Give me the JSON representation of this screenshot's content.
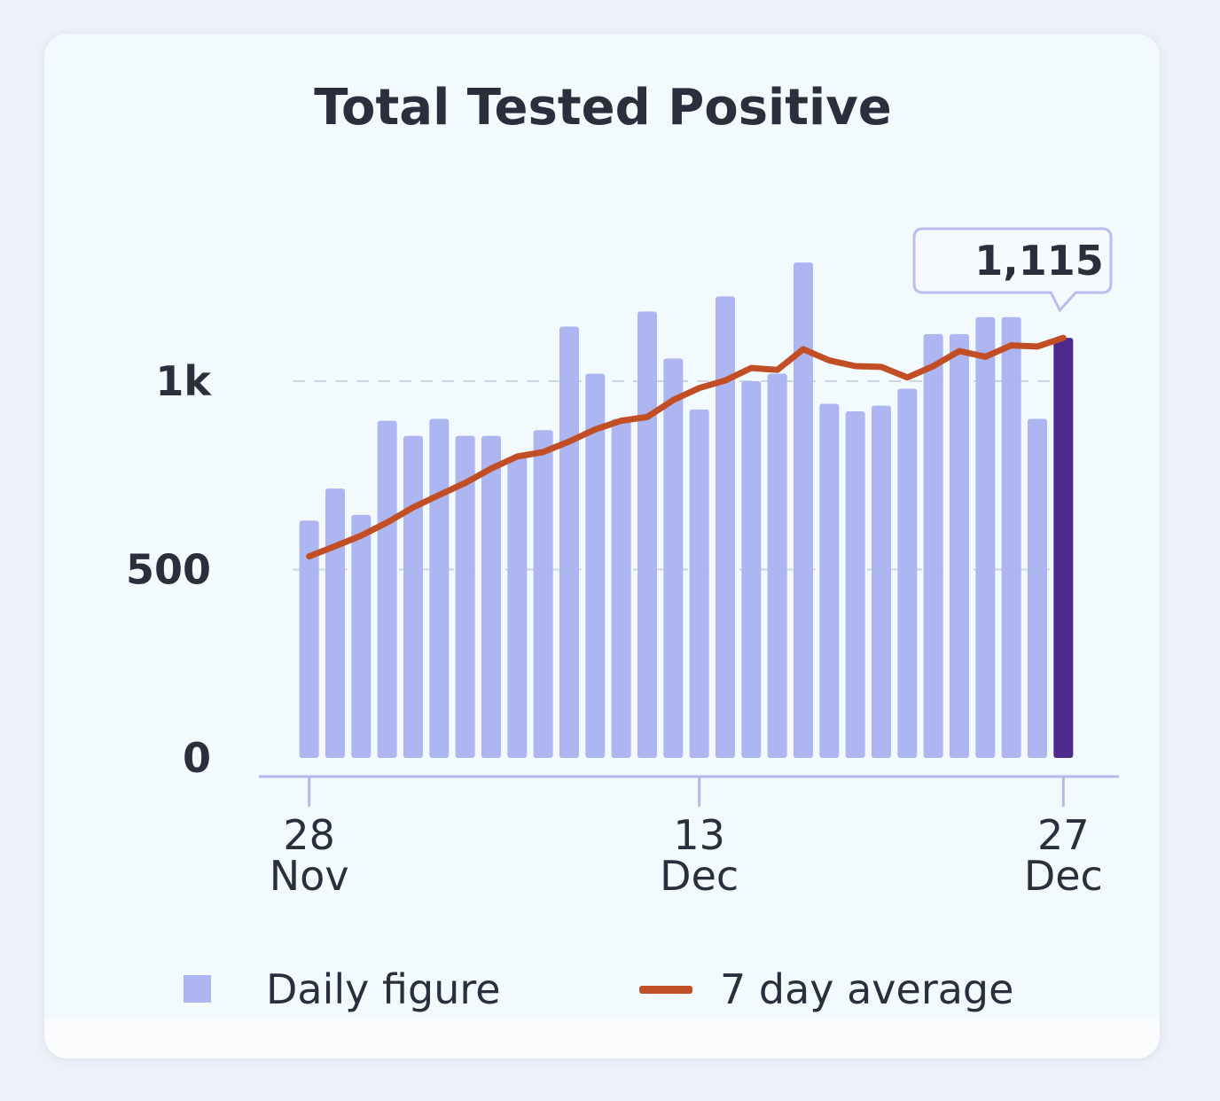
{
  "chart_data": {
    "type": "bar",
    "title": "Total Tested Positive",
    "series": [
      {
        "name": "Daily figure",
        "kind": "bar",
        "color": "#aeb6f1",
        "highlight_color": "#4e2a8c",
        "values": [
          630,
          715,
          645,
          895,
          855,
          900,
          855,
          855,
          800,
          870,
          1145,
          1020,
          900,
          1185,
          1060,
          925,
          1225,
          1000,
          1020,
          1315,
          940,
          920,
          935,
          980,
          1125,
          1125,
          1170,
          1170,
          900,
          1115
        ]
      },
      {
        "name": "7 day average",
        "kind": "line",
        "color": "#c24e26",
        "values": [
          535,
          562,
          590,
          625,
          665,
          698,
          730,
          768,
          800,
          812,
          840,
          872,
          895,
          905,
          950,
          982,
          1002,
          1035,
          1030,
          1085,
          1055,
          1040,
          1038,
          1010,
          1040,
          1080,
          1065,
          1095,
          1092,
          1115
        ]
      }
    ],
    "x_ticks": [
      {
        "index": 0,
        "day": "28",
        "month": "Nov"
      },
      {
        "index": 15,
        "day": "13",
        "month": "Dec"
      },
      {
        "index": 29,
        "day": "27",
        "month": "Dec"
      }
    ],
    "y_ticks": [
      {
        "value": 0,
        "label": "0"
      },
      {
        "value": 500,
        "label": "500"
      },
      {
        "value": 1000,
        "label": "1k"
      }
    ],
    "ylim": [
      0,
      1400
    ],
    "grid": "dashed horizontal",
    "tooltip": {
      "index": 29,
      "label": "1,115"
    },
    "legend": [
      {
        "label": "Daily figure",
        "marker": "square",
        "color": "#aeb6f1"
      },
      {
        "label": "7 day average",
        "marker": "line",
        "color": "#c24e26"
      }
    ]
  }
}
